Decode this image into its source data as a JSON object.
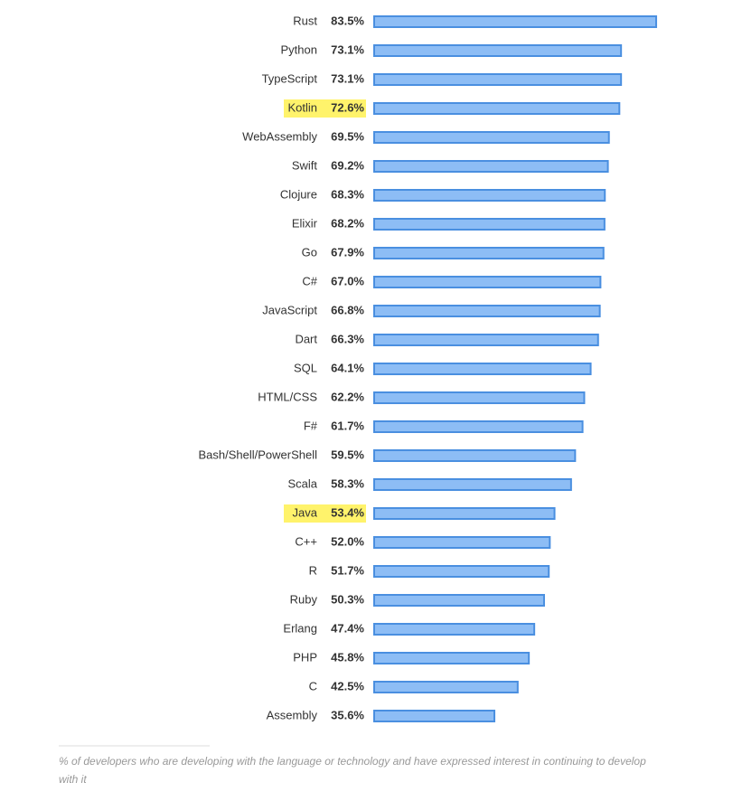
{
  "chart_data": {
    "type": "bar",
    "orientation": "horizontal",
    "categories": [
      "Rust",
      "Python",
      "TypeScript",
      "Kotlin",
      "WebAssembly",
      "Swift",
      "Clojure",
      "Elixir",
      "Go",
      "C#",
      "JavaScript",
      "Dart",
      "SQL",
      "HTML/CSS",
      "F#",
      "Bash/Shell/PowerShell",
      "Scala",
      "Java",
      "C++",
      "R",
      "Ruby",
      "Erlang",
      "PHP",
      "C",
      "Assembly"
    ],
    "values": [
      83.5,
      73.1,
      73.1,
      72.6,
      69.5,
      69.2,
      68.3,
      68.2,
      67.9,
      67.0,
      66.8,
      66.3,
      64.1,
      62.2,
      61.7,
      59.5,
      58.3,
      53.4,
      52.0,
      51.7,
      50.3,
      47.4,
      45.8,
      42.5,
      35.6
    ],
    "value_labels": [
      "83.5%",
      "73.1%",
      "73.1%",
      "72.6%",
      "69.5%",
      "69.2%",
      "68.3%",
      "68.2%",
      "67.9%",
      "67.0%",
      "66.8%",
      "66.3%",
      "64.1%",
      "62.2%",
      "61.7%",
      "59.5%",
      "58.3%",
      "53.4%",
      "52.0%",
      "51.7%",
      "50.3%",
      "47.4%",
      "45.8%",
      "42.5%",
      "35.6%"
    ],
    "xlim": [
      0,
      100
    ],
    "color": "#8dbdf5",
    "edge_color": "#4a8fe0",
    "highlight": [
      3,
      17
    ],
    "highlight_color": "#fff36b",
    "footnote": "% of developers who are developing with the language or technology and have expressed interest in continuing to develop with it"
  }
}
